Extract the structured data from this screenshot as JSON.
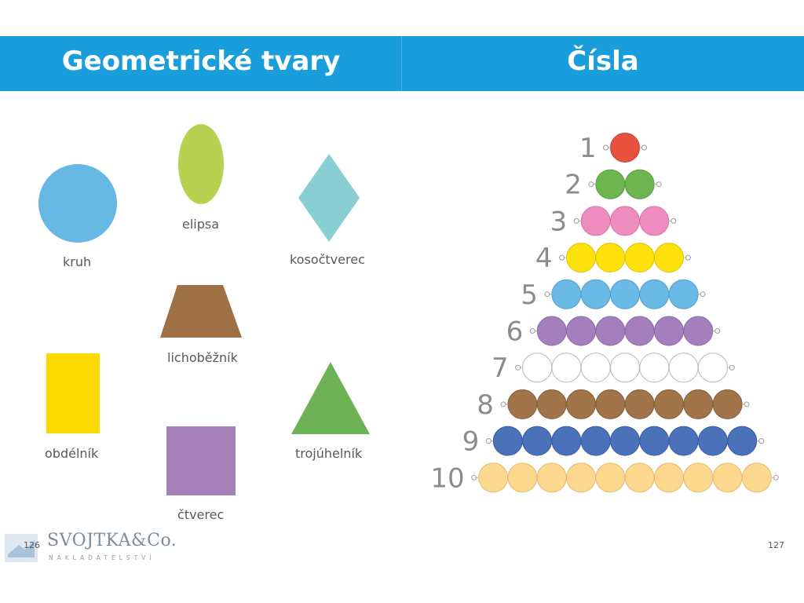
{
  "header": {
    "left_title": "Geometrické tvary",
    "right_title": "Čísla"
  },
  "shapes": {
    "kruh": {
      "label": "kruh",
      "color": "#68b8e6"
    },
    "elipsa": {
      "label": "elipsa",
      "color": "#b9d150"
    },
    "kosoctverec": {
      "label": "kosočtverec",
      "color": "#87cfd2"
    },
    "lichobeznik": {
      "label": "lichoběžník",
      "color": "#9f7043"
    },
    "obdelnik": {
      "label": "obdélník",
      "color": "#fcd900"
    },
    "ctverec": {
      "label": "čtverec",
      "color": "#a580b9"
    },
    "trojuhelnik": {
      "label": "trojúhelník",
      "color": "#6db356"
    }
  },
  "numbers": {
    "rows": [
      {
        "label": "1",
        "count": 1,
        "color": "#e8533f",
        "stroke": "#c7402f"
      },
      {
        "label": "2",
        "count": 2,
        "color": "#6db64f",
        "stroke": "#569c3d"
      },
      {
        "label": "3",
        "count": 3,
        "color": "#ef8cbf",
        "stroke": "#d573a6"
      },
      {
        "label": "4",
        "count": 4,
        "color": "#fde10a",
        "stroke": "#e0c300"
      },
      {
        "label": "5",
        "count": 5,
        "color": "#6ab9e7",
        "stroke": "#4fa0cf"
      },
      {
        "label": "6",
        "count": 6,
        "color": "#a47fbd",
        "stroke": "#8d68a6"
      },
      {
        "label": "7",
        "count": 7,
        "color": "#ffffff",
        "stroke": "#b9b9b9"
      },
      {
        "label": "8",
        "count": 8,
        "color": "#a27449",
        "stroke": "#875d35"
      },
      {
        "label": "9",
        "count": 9,
        "color": "#4a72b9",
        "stroke": "#3a5e9d"
      },
      {
        "label": "10",
        "count": 10,
        "color": "#fcd88e",
        "stroke": "#e0bd72"
      }
    ]
  },
  "footer": {
    "left_page": "126",
    "right_page": "127",
    "publisher_name": "SVOJTKA&Co.",
    "publisher_sub": "NAKLADATELSTVÍ"
  }
}
